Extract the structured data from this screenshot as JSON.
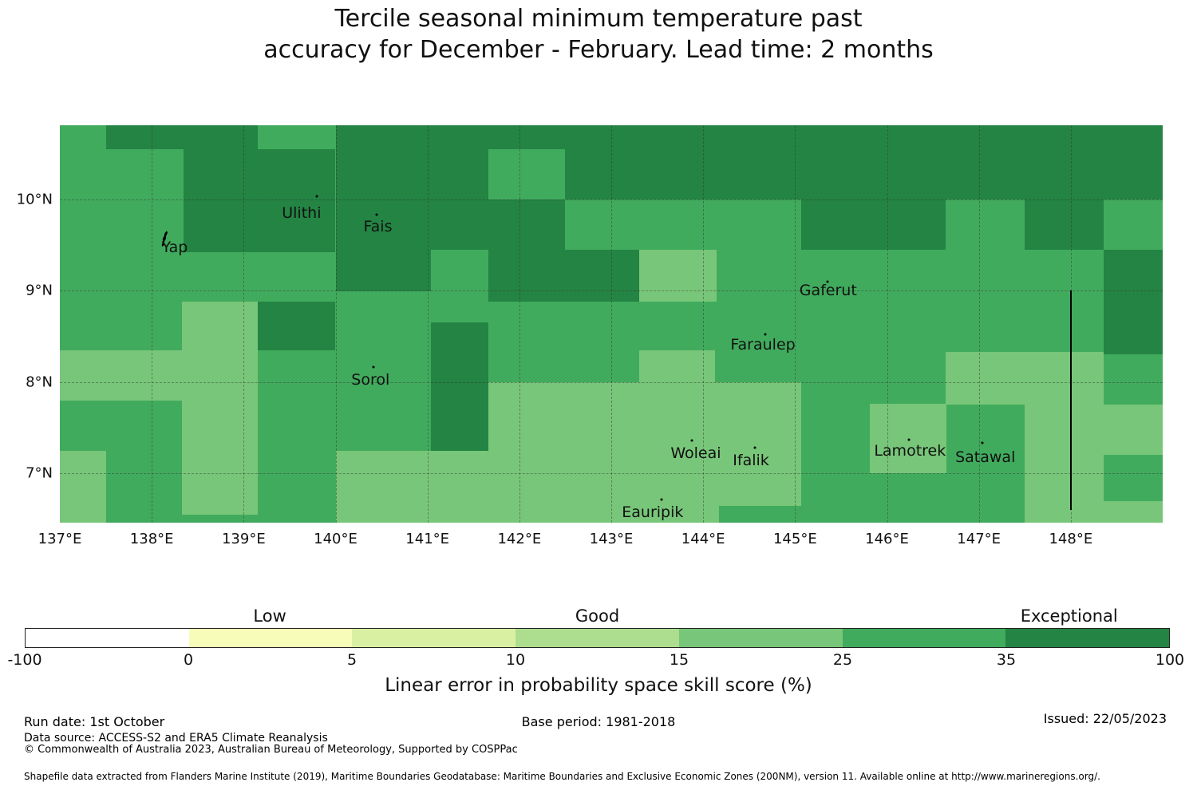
{
  "title": {
    "line1": "Tercile seasonal minimum temperature past",
    "line2": "accuracy for December - February. Lead time: 2 months"
  },
  "chart_data": {
    "type": "heatmap",
    "subtype": "gridded-skill-score-map",
    "lon_min": 137.0,
    "lon_max": 149.0,
    "lat_min": 6.46,
    "lat_max": 10.81,
    "grid_on": true,
    "base_bin": "25-35",
    "bin_colors": {
      "35-100": "#238443",
      "25-35": "#41ab5d",
      "15-25": "#78c679"
    },
    "patches": [
      {
        "lon0": 137.5,
        "lon1": 139.15,
        "lat0": 10.55,
        "lat1": 10.81,
        "bin": "35-100"
      },
      {
        "lon0": 138.35,
        "lon1": 140.0,
        "lat0": 9.42,
        "lat1": 10.55,
        "bin": "35-100"
      },
      {
        "lon0": 140.0,
        "lon1": 149.0,
        "lat0": 10.0,
        "lat1": 10.81,
        "bin": "35-100"
      },
      {
        "lon0": 141.66,
        "lon1": 142.5,
        "lat0": 10.0,
        "lat1": 10.55,
        "bin": "25-35"
      },
      {
        "lon0": 141.04,
        "lon1": 142.5,
        "lat0": 9.45,
        "lat1": 10.0,
        "bin": "35-100"
      },
      {
        "lon0": 140.0,
        "lon1": 141.04,
        "lat0": 8.99,
        "lat1": 10.0,
        "bin": "35-100"
      },
      {
        "lon0": 141.66,
        "lon1": 143.3,
        "lat0": 8.88,
        "lat1": 9.45,
        "bin": "35-100"
      },
      {
        "lon0": 143.3,
        "lon1": 144.15,
        "lat0": 8.88,
        "lat1": 9.45,
        "bin": "15-25"
      },
      {
        "lon0": 145.07,
        "lon1": 146.64,
        "lat0": 9.45,
        "lat1": 10.0,
        "bin": "35-100"
      },
      {
        "lon0": 147.5,
        "lon1": 148.36,
        "lat0": 9.45,
        "lat1": 10.0,
        "bin": "35-100"
      },
      {
        "lon0": 148.36,
        "lon1": 149.0,
        "lat0": 8.3,
        "lat1": 9.45,
        "bin": "35-100"
      },
      {
        "lon0": 139.15,
        "lon1": 140.0,
        "lat0": 8.35,
        "lat1": 8.88,
        "bin": "35-100"
      },
      {
        "lon0": 138.33,
        "lon1": 139.15,
        "lat0": 8.35,
        "lat1": 8.88,
        "bin": "15-25"
      },
      {
        "lon0": 137.0,
        "lon1": 139.15,
        "lat0": 7.8,
        "lat1": 8.35,
        "bin": "15-25"
      },
      {
        "lon0": 138.33,
        "lon1": 139.15,
        "lat0": 6.55,
        "lat1": 7.8,
        "bin": "15-25"
      },
      {
        "lon0": 137.0,
        "lon1": 137.5,
        "lat0": 6.46,
        "lat1": 7.25,
        "bin": "15-25"
      },
      {
        "lon0": 140.0,
        "lon1": 141.66,
        "lat0": 6.46,
        "lat1": 7.25,
        "bin": "15-25"
      },
      {
        "lon0": 141.04,
        "lon1": 141.66,
        "lat0": 7.25,
        "lat1": 8.65,
        "bin": "35-100"
      },
      {
        "lon0": 143.3,
        "lon1": 144.13,
        "lat0": 8.0,
        "lat1": 8.35,
        "bin": "15-25"
      },
      {
        "lon0": 141.66,
        "lon1": 145.07,
        "lat0": 6.46,
        "lat1": 8.0,
        "bin": "15-25"
      },
      {
        "lon0": 144.17,
        "lon1": 145.07,
        "lat0": 6.46,
        "lat1": 6.64,
        "bin": "25-35"
      },
      {
        "lon0": 146.64,
        "lon1": 148.36,
        "lat0": 7.75,
        "lat1": 8.33,
        "bin": "15-25"
      },
      {
        "lon0": 145.81,
        "lon1": 146.65,
        "lat0": 7.0,
        "lat1": 7.76,
        "bin": "15-25"
      },
      {
        "lon0": 147.5,
        "lon1": 148.36,
        "lat0": 6.46,
        "lat1": 7.76,
        "bin": "15-25"
      },
      {
        "lon0": 148.36,
        "lon1": 149.0,
        "lat0": 7.2,
        "lat1": 7.75,
        "bin": "15-25"
      },
      {
        "lon0": 148.36,
        "lon1": 149.0,
        "lat0": 6.46,
        "lat1": 6.7,
        "bin": "15-25"
      }
    ],
    "gridline_lons": [
      138,
      139,
      140,
      141,
      142,
      143,
      144,
      145,
      146,
      147,
      148
    ],
    "gridline_lats": [
      7,
      8,
      9,
      10
    ],
    "islands": [
      {
        "name": "Yap",
        "label_lon": 138.25,
        "label_lat": 9.47,
        "dot_lon": 138.14,
        "dot_lat": 9.55,
        "marker": "shape"
      },
      {
        "name": "Ulithi",
        "label_lon": 139.63,
        "label_lat": 9.85,
        "dot_lon": 139.8,
        "dot_lat": 10.03,
        "marker": "dot"
      },
      {
        "name": "Fais",
        "label_lon": 140.46,
        "label_lat": 9.7,
        "dot_lon": 140.45,
        "dot_lat": 9.83,
        "marker": "dot"
      },
      {
        "name": "Gaferut",
        "label_lon": 145.36,
        "label_lat": 9.0,
        "dot_lon": 145.35,
        "dot_lat": 9.1,
        "marker": "dot"
      },
      {
        "name": "Faraulep",
        "label_lon": 144.65,
        "label_lat": 8.41,
        "dot_lon": 144.68,
        "dot_lat": 8.52,
        "marker": "dot"
      },
      {
        "name": "Sorol",
        "label_lon": 140.38,
        "label_lat": 8.02,
        "dot_lon": 140.41,
        "dot_lat": 8.16,
        "marker": "dot"
      },
      {
        "name": "Woleai",
        "label_lon": 143.92,
        "label_lat": 7.22,
        "dot_lon": 143.88,
        "dot_lat": 7.36,
        "marker": "dot"
      },
      {
        "name": "Ifalik",
        "label_lon": 144.52,
        "label_lat": 7.14,
        "dot_lon": 144.56,
        "dot_lat": 7.28,
        "marker": "dot"
      },
      {
        "name": "Lamotrek",
        "label_lon": 146.25,
        "label_lat": 7.25,
        "dot_lon": 146.24,
        "dot_lat": 7.37,
        "marker": "dot"
      },
      {
        "name": "Satawal",
        "label_lon": 147.07,
        "label_lat": 7.18,
        "dot_lon": 147.04,
        "dot_lat": 7.33,
        "marker": "dot"
      },
      {
        "name": "Eauripik",
        "label_lon": 143.45,
        "label_lat": 6.57,
        "dot_lon": 143.55,
        "dot_lat": 6.71,
        "marker": "dot"
      }
    ],
    "boundary_line": {
      "lon": 148.0,
      "lat0": 6.6,
      "lat1": 9.0
    },
    "x_ticks": [
      {
        "lon": 137,
        "label": "137°E"
      },
      {
        "lon": 138,
        "label": "138°E"
      },
      {
        "lon": 139,
        "label": "139°E"
      },
      {
        "lon": 140,
        "label": "140°E"
      },
      {
        "lon": 141,
        "label": "141°E"
      },
      {
        "lon": 142,
        "label": "142°E"
      },
      {
        "lon": 143,
        "label": "143°E"
      },
      {
        "lon": 144,
        "label": "144°E"
      },
      {
        "lon": 145,
        "label": "145°E"
      },
      {
        "lon": 146,
        "label": "146°E"
      },
      {
        "lon": 147,
        "label": "147°E"
      },
      {
        "lon": 148,
        "label": "148°E"
      }
    ],
    "y_ticks": [
      {
        "lat": 10,
        "label": "10°N"
      },
      {
        "lat": 9,
        "label": "9°N"
      },
      {
        "lat": 8,
        "label": "8°N"
      },
      {
        "lat": 7,
        "label": "7°N"
      }
    ]
  },
  "colorbar": {
    "boundaries": [
      "-100",
      "0",
      "5",
      "10",
      "15",
      "25",
      "35",
      "100"
    ],
    "colors": [
      "#ffffff",
      "#f7fcb9",
      "#d9f0a3",
      "#addd8e",
      "#78c679",
      "#41ab5d",
      "#238443"
    ],
    "category_labels": [
      {
        "text": "Low",
        "pos_pct": 21.4
      },
      {
        "text": "Good",
        "pos_pct": 50.0
      },
      {
        "text": "Exceptional",
        "pos_pct": 91.2
      }
    ],
    "xlabel": "Linear error in probability space skill score (%)"
  },
  "footer": {
    "run_date": "Run date: 1st October",
    "base_period": "Base period: 1981-2018",
    "issued": "Issued: 22/05/2023",
    "data_source": "Data source: ACCESS-S2 and ERA5 Climate Reanalysis",
    "copyright": "© Commonwealth of Australia 2023, Australian Bureau of Meteorology, Supported by COSPPac",
    "shapefile_note": "Shapefile data extracted from Flanders Marine Institute (2019), Maritime Boundaries Geodatabase: Maritime Boundaries and Exclusive Economic Zones (200NM), version 11. Available online at http://www.marineregions.org/."
  }
}
